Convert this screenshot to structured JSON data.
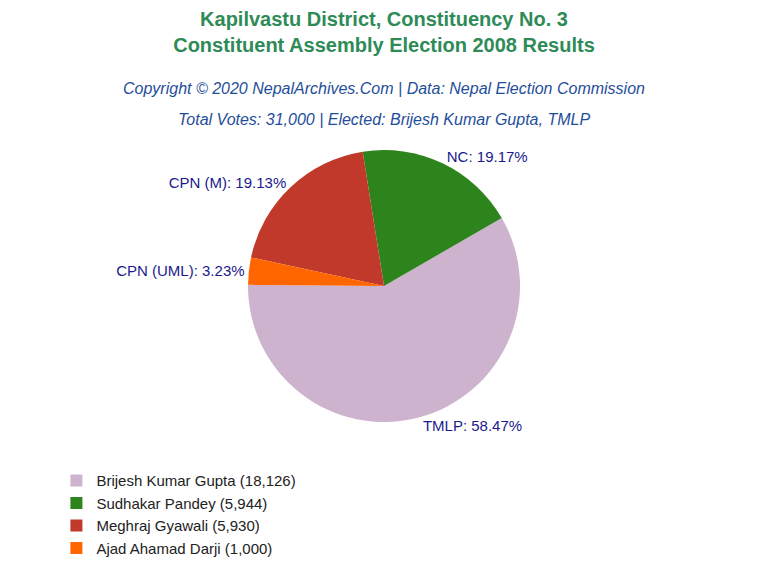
{
  "chart_data": {
    "type": "pie",
    "title": [
      "Kapilvastu District, Constituency No. 3",
      "Constituent Assembly Election 2008 Results"
    ],
    "subtitle": [
      "Copyright © 2020 NepalArchives.Com | Data: Nepal Election Commission",
      "Total Votes: 31,000 | Elected: Brijesh Kumar Gupta, TMLP"
    ],
    "categories": [
      "TMLP",
      "NC",
      "CPN (M)",
      "CPN (UML)"
    ],
    "values": [
      58.47,
      19.17,
      19.13,
      3.23
    ],
    "value_labels": [
      "TMLP: 58.47%",
      "NC: 19.17%",
      "CPN (M): 19.13%",
      "CPN (UML): 3.23%"
    ],
    "legend_labels": [
      "Brijesh Kumar Gupta (18,126)",
      "Sudhakar Pandey (5,944)",
      "Meghraj Gyawali (5,930)",
      "Ajad Ahamad Darji (1,000)"
    ],
    "colors": [
      "#cdb3cd",
      "#2e841c",
      "#c0392b",
      "#ff6600"
    ],
    "data_labels": true,
    "legend": "bottom"
  }
}
